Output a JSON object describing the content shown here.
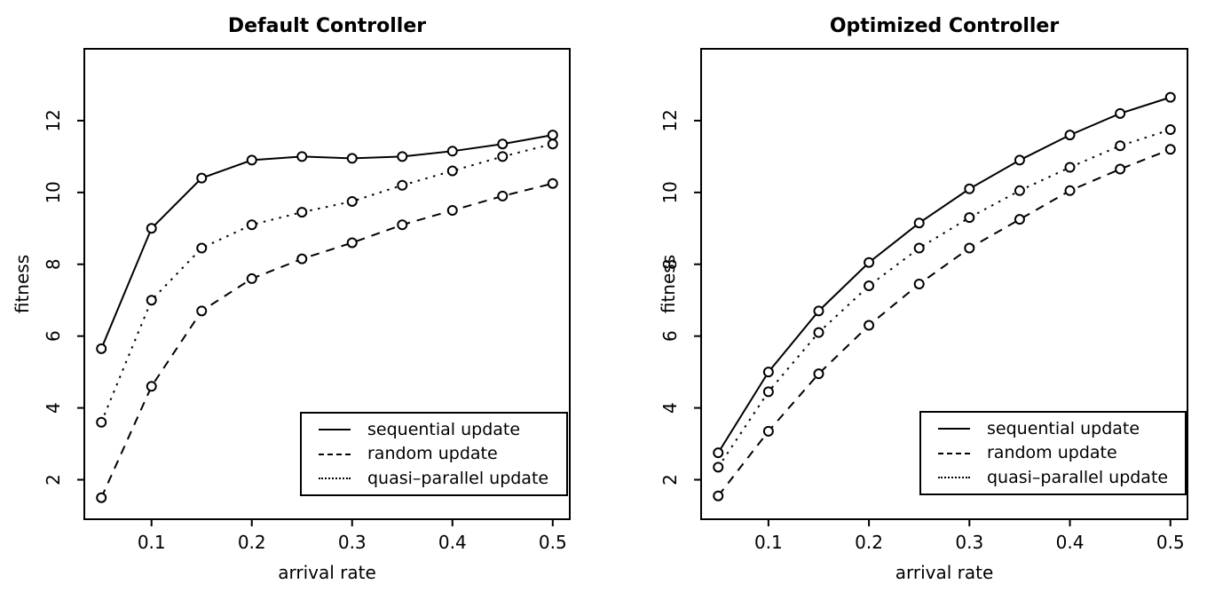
{
  "figure": {
    "background_color": "#ffffff",
    "line_color": "#000000"
  },
  "chart_data": [
    {
      "type": "line",
      "title": "Default Controller",
      "xlabel": "arrival rate",
      "ylabel": "fitness",
      "xlim": [
        0.033,
        0.517
      ],
      "ylim": [
        0.9,
        14.0
      ],
      "xticks": [
        0.1,
        0.2,
        0.3,
        0.4,
        0.5
      ],
      "xtick_labels": [
        "0.1",
        "0.2",
        "0.3",
        "0.4",
        "0.5"
      ],
      "yticks": [
        2,
        4,
        6,
        8,
        10,
        12
      ],
      "ytick_labels": [
        "2",
        "4",
        "6",
        "8",
        "10",
        "12"
      ],
      "grid": false,
      "marker": "open-circle",
      "legend_position": "bottom-right",
      "x": [
        0.05,
        0.1,
        0.15,
        0.2,
        0.25,
        0.3,
        0.35,
        0.4,
        0.45,
        0.5
      ],
      "series": [
        {
          "name": "sequential update",
          "style": "solid",
          "values": [
            5.65,
            9.0,
            10.4,
            10.9,
            11.0,
            10.95,
            11.0,
            11.15,
            11.35,
            11.6
          ]
        },
        {
          "name": "random update",
          "style": "dashed",
          "values": [
            1.5,
            4.6,
            6.7,
            7.6,
            8.15,
            8.6,
            9.1,
            9.5,
            9.9,
            10.25
          ]
        },
        {
          "name": "quasi–parallel update",
          "style": "dotted",
          "values": [
            3.6,
            7.0,
            8.45,
            9.1,
            9.45,
            9.75,
            10.2,
            10.6,
            11.0,
            11.35
          ]
        }
      ]
    },
    {
      "type": "line",
      "title": "Optimized Controller",
      "xlabel": "arrival rate",
      "ylabel": "fitness",
      "xlim": [
        0.033,
        0.517
      ],
      "ylim": [
        0.9,
        14.0
      ],
      "xticks": [
        0.1,
        0.2,
        0.3,
        0.4,
        0.5
      ],
      "xtick_labels": [
        "0.1",
        "0.2",
        "0.3",
        "0.4",
        "0.5"
      ],
      "yticks": [
        2,
        4,
        6,
        8,
        10,
        12
      ],
      "ytick_labels": [
        "2",
        "4",
        "6",
        "8",
        "10",
        "12"
      ],
      "grid": false,
      "marker": "open-circle",
      "legend_position": "bottom-right",
      "x": [
        0.05,
        0.1,
        0.15,
        0.2,
        0.25,
        0.3,
        0.35,
        0.4,
        0.45,
        0.5
      ],
      "series": [
        {
          "name": "sequential update",
          "style": "solid",
          "values": [
            2.75,
            5.0,
            6.7,
            8.05,
            9.15,
            10.1,
            10.9,
            11.6,
            12.2,
            12.65
          ]
        },
        {
          "name": "random update",
          "style": "dashed",
          "values": [
            1.55,
            3.35,
            4.95,
            6.3,
            7.45,
            8.45,
            9.25,
            10.05,
            10.65,
            11.2
          ]
        },
        {
          "name": "quasi–parallel update",
          "style": "dotted",
          "values": [
            2.35,
            4.45,
            6.1,
            7.4,
            8.45,
            9.3,
            10.05,
            10.7,
            11.3,
            11.75
          ]
        }
      ]
    }
  ]
}
